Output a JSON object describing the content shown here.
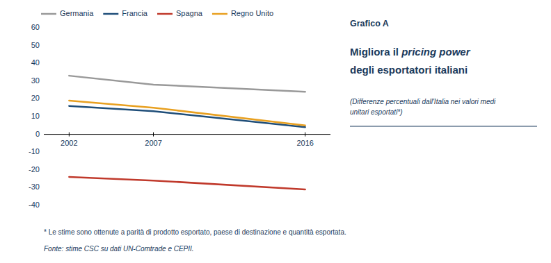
{
  "chart_data": {
    "type": "line",
    "title": [
      "Migliora il pricing power",
      "degli esportatori italiani"
    ],
    "subtitle": "(Differenze percentuali dall'Italia nei valori medi\nunitari esportati*)",
    "annotations": [
      "Grafico A",
      "* Le stime sono ottenute a parità di prodotto esportato, paese di destinazione e quantità esportata.",
      "Fonte: stime CSC su dati UN-Comtrade e CEPII."
    ],
    "x": [
      2002,
      2007,
      2016
    ],
    "series": [
      {
        "name": "Germania",
        "color": "#999999",
        "values": [
          33,
          28,
          24
        ]
      },
      {
        "name": "Francia",
        "color": "#1f4e79",
        "values": [
          16,
          13,
          4
        ]
      },
      {
        "name": "Spagna",
        "color": "#c0392b",
        "values": [
          -24,
          -26,
          -31
        ]
      },
      {
        "name": "Regno Unito",
        "color": "#e8a020",
        "values": [
          19,
          15,
          5
        ]
      }
    ],
    "xlim": [
      2000.5,
      2017.5
    ],
    "xticks": [
      2002,
      2007,
      2016
    ],
    "ylim": [
      -40,
      60
    ],
    "yticks": [
      -40,
      -30,
      -20,
      -10,
      0,
      10,
      20,
      30,
      40,
      50,
      60
    ],
    "grid": false,
    "legend": "top"
  }
}
